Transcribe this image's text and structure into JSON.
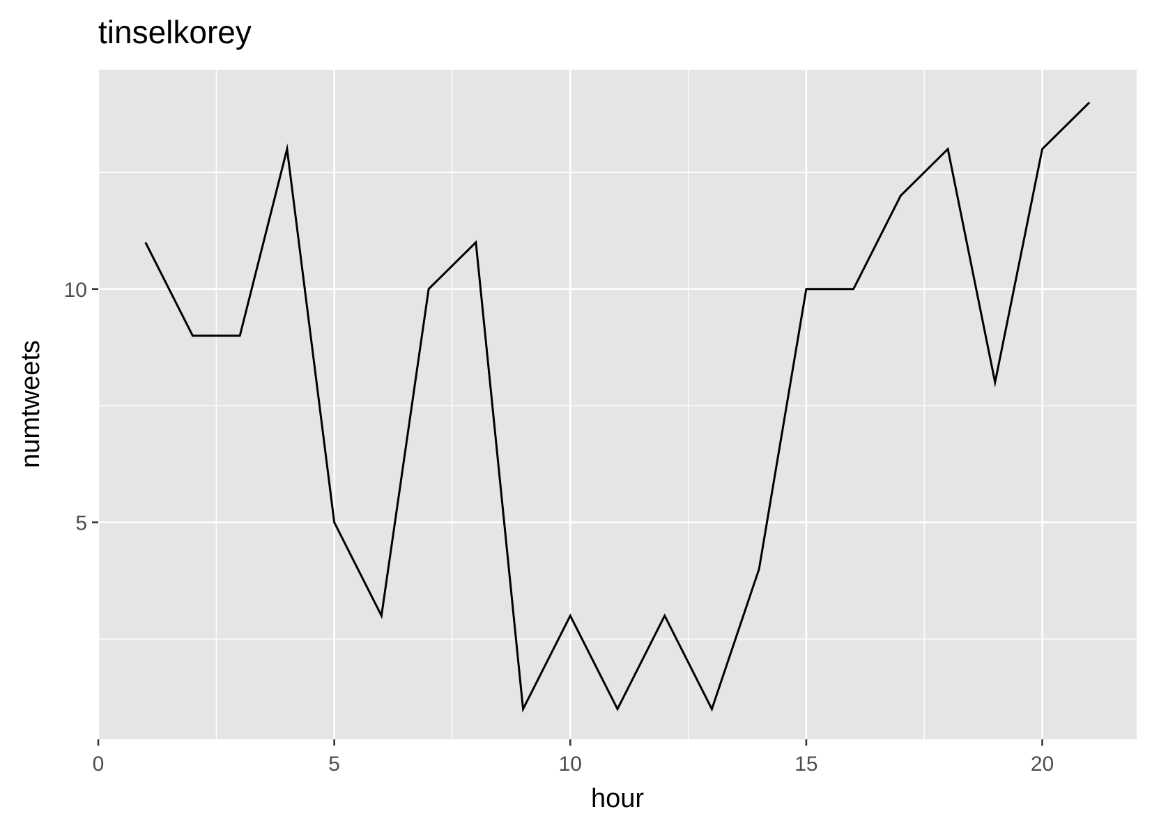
{
  "chart_data": {
    "type": "line",
    "title": "tinselkorey",
    "xlabel": "hour",
    "ylabel": "numtweets",
    "xlim": [
      0,
      22
    ],
    "ylim": [
      0.35,
      14.7
    ],
    "x_major_ticks": [
      0,
      5,
      10,
      15,
      20
    ],
    "x_tick_labels": [
      "0",
      "5",
      "10",
      "15",
      "20"
    ],
    "x_minor_ticks": [
      2.5,
      7.5,
      12.5,
      17.5
    ],
    "y_major_ticks": [
      5,
      10
    ],
    "y_tick_labels": [
      "5",
      "10"
    ],
    "y_minor_ticks": [
      2.5,
      7.5,
      12.5
    ],
    "grid": true,
    "legend": "none",
    "colors": {
      "panel_background": "#e5e5e5",
      "grid": "#ffffff",
      "line": "#000000",
      "tick_mark": "#333333"
    },
    "x": [
      1,
      2,
      3,
      4,
      5,
      6,
      7,
      8,
      9,
      10,
      11,
      12,
      13,
      14,
      15,
      16,
      17,
      18,
      19,
      20,
      21
    ],
    "y": [
      11,
      9,
      9,
      13,
      5,
      3,
      10,
      11,
      1,
      3,
      1,
      3,
      1,
      4,
      10,
      10,
      12,
      13,
      8,
      13,
      14
    ]
  }
}
